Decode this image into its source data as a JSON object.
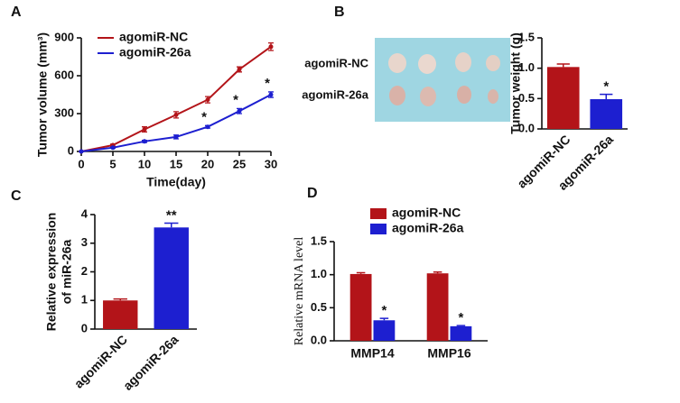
{
  "chart_data": [
    {
      "type": "line",
      "panel_label": "A",
      "x_label": "Time(day)",
      "y_label": "Tumor volume (mm³)",
      "x": [
        0,
        5,
        10,
        15,
        20,
        25,
        30
      ],
      "xlim": [
        0,
        30
      ],
      "xticks": [
        0,
        5,
        10,
        15,
        20,
        25,
        30
      ],
      "ylim": [
        0,
        900
      ],
      "yticks": [
        0,
        300,
        600,
        900
      ],
      "legend_position": "upper left",
      "series": [
        {
          "name": "agomiR-NC",
          "color": "#b31419",
          "values": [
            0,
            50,
            175,
            290,
            410,
            650,
            830
          ],
          "errors": [
            0,
            8,
            20,
            25,
            25,
            20,
            30
          ],
          "significance": [
            null,
            null,
            null,
            null,
            null,
            null,
            null
          ]
        },
        {
          "name": "agomiR-26a",
          "color": "#1d1fd0",
          "values": [
            0,
            30,
            80,
            115,
            195,
            320,
            450
          ],
          "errors": [
            0,
            5,
            8,
            15,
            10,
            20,
            22
          ],
          "significance": [
            null,
            null,
            null,
            null,
            "*",
            "*",
            "*"
          ]
        }
      ]
    },
    {
      "type": "bar",
      "panel_label": "B",
      "image_row_labels": [
        "agomiR-NC",
        "agomiR-26a"
      ],
      "y_label": "Tumor weight (g)",
      "categories": [
        "agomiR-NC",
        "agomiR-26a"
      ],
      "values": [
        1.02,
        0.49
      ],
      "errors": [
        0.05,
        0.08
      ],
      "significance": [
        null,
        "*"
      ],
      "colors": [
        "#b31419",
        "#1d1fd0"
      ],
      "ylim": [
        0,
        1.5
      ],
      "yticks": [
        {
          "value": 0,
          "label": "0.0"
        },
        0.5,
        {
          "value": 1,
          "label": "1.0"
        },
        1.5
      ]
    },
    {
      "type": "bar",
      "panel_label": "C",
      "y_label": [
        "Relative expression",
        "of miR-26a"
      ],
      "categories": [
        "agomiR-NC",
        "agomiR-26a"
      ],
      "values": [
        1.0,
        3.55
      ],
      "errors": [
        0.05,
        0.15
      ],
      "significance": [
        null,
        "**"
      ],
      "colors": [
        "#b31419",
        "#1d1fd0"
      ],
      "ylim": [
        0,
        4
      ],
      "yticks": [
        0,
        1,
        2,
        3,
        4
      ]
    },
    {
      "type": "bar",
      "panel_label": "D",
      "y_label": "Relative mRNA level",
      "legend_position": "top left",
      "categories": [
        "MMP14",
        "MMP16"
      ],
      "ylim": [
        0,
        1.5
      ],
      "yticks": [
        {
          "value": 0,
          "label": "0.0"
        },
        0.5,
        {
          "value": 1,
          "label": "1.0"
        },
        1.5
      ],
      "series": [
        {
          "name": "agomiR-NC",
          "color": "#b31419",
          "values": [
            1.01,
            1.02
          ],
          "errors": [
            0.02,
            0.02
          ],
          "significance": [
            null,
            null
          ]
        },
        {
          "name": "agomiR-26a",
          "color": "#1d1fd0",
          "values": [
            0.31,
            0.22
          ],
          "errors": [
            0.03,
            0.01
          ],
          "significance": [
            "*",
            "*"
          ]
        }
      ]
    }
  ]
}
